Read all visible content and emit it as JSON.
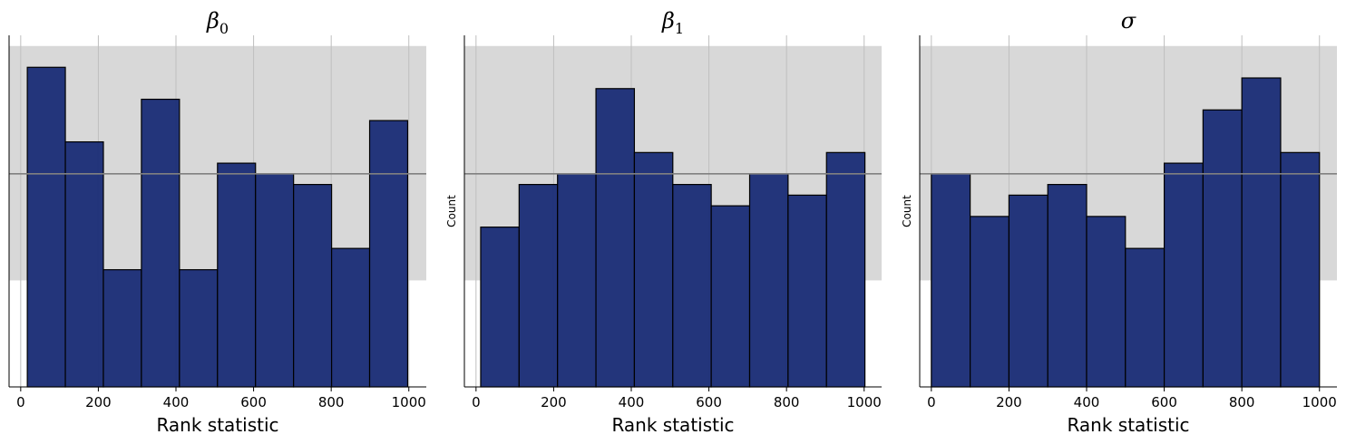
{
  "style": {
    "bar_fill": "#1f3178",
    "bar_edge": "#000000",
    "band_fill": "#d8d8d8",
    "ref_line": "#808080",
    "grid": "#bfbfbf"
  },
  "chart_data": [
    {
      "type": "bar",
      "title": "β0",
      "title_main": "β",
      "title_sub": "0",
      "xlabel": "Rank statistic",
      "ylabel": "",
      "xlim": [
        -30,
        1045
      ],
      "ylim": [
        0,
        33
      ],
      "xticks": [
        0,
        200,
        400,
        600,
        800,
        1000
      ],
      "bin_edges": [
        17,
        115,
        213,
        311,
        409,
        507,
        605,
        703,
        801,
        899,
        997
      ],
      "values": [
        30,
        23,
        11,
        27,
        11,
        21,
        20,
        19,
        13,
        25
      ],
      "reference_line": 20,
      "band": [
        10,
        32
      ],
      "grid": true
    },
    {
      "type": "bar",
      "title": "β1",
      "title_main": "β",
      "title_sub": "1",
      "xlabel": "Rank statistic",
      "ylabel": "Count",
      "xlim": [
        -30,
        1045
      ],
      "ylim": [
        0,
        33
      ],
      "xticks": [
        0,
        200,
        400,
        600,
        800,
        1000
      ],
      "bin_edges": [
        12,
        111,
        210,
        309,
        408,
        507,
        606,
        705,
        804,
        903,
        1002
      ],
      "values": [
        15,
        19,
        20,
        28,
        22,
        19,
        17,
        20,
        18,
        22
      ],
      "reference_line": 20,
      "band": [
        10,
        32
      ],
      "grid": true
    },
    {
      "type": "bar",
      "title": "σ",
      "title_main": "σ",
      "title_sub": "",
      "xlabel": "Rank statistic",
      "ylabel": "Count",
      "xlim": [
        -30,
        1045
      ],
      "ylim": [
        0,
        33
      ],
      "xticks": [
        0,
        200,
        400,
        600,
        800,
        1000
      ],
      "bin_edges": [
        0,
        100,
        200,
        300,
        400,
        500,
        600,
        700,
        800,
        900,
        1000
      ],
      "values": [
        20,
        16,
        18,
        19,
        16,
        13,
        21,
        26,
        29,
        22
      ],
      "reference_line": 20,
      "band": [
        10,
        32
      ],
      "grid": true
    }
  ]
}
